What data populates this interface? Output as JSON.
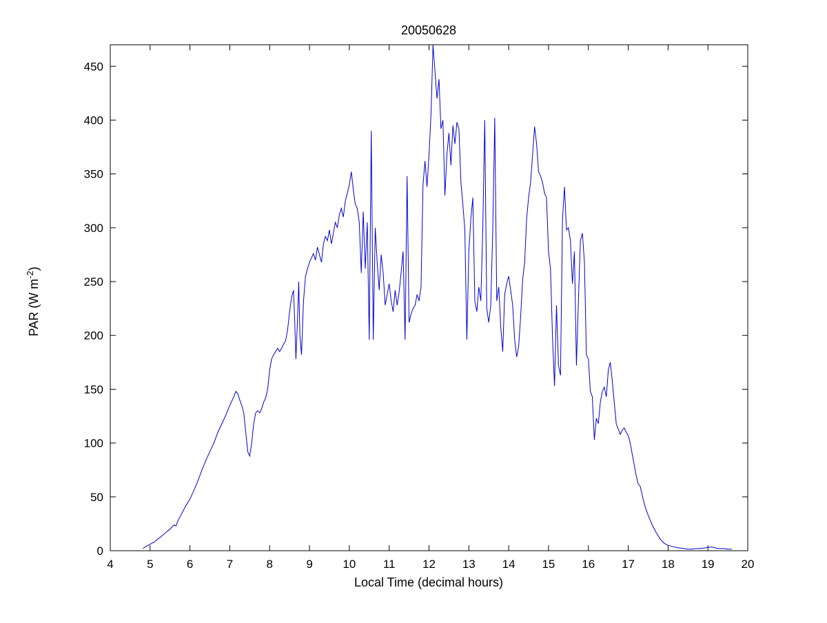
{
  "chart_data": {
    "type": "line",
    "title": "20050628",
    "xlabel": "Local Time (decimal hours)",
    "ylabel": "PAR (W m-2)",
    "ylabel_prefix": "PAR (W m",
    "ylabel_superscript": "-2",
    "ylabel_suffix": ")",
    "xlim": [
      4,
      20
    ],
    "ylim": [
      0,
      470
    ],
    "xticks": [
      4,
      5,
      6,
      7,
      8,
      9,
      10,
      11,
      12,
      13,
      14,
      15,
      16,
      17,
      18,
      19,
      20
    ],
    "yticks": [
      0,
      50,
      100,
      150,
      200,
      250,
      300,
      350,
      400,
      450
    ],
    "line_color": "#0000CC",
    "grid": false,
    "legend": null,
    "series": [
      {
        "name": "PAR",
        "points": [
          [
            4.82,
            2
          ],
          [
            4.9,
            4
          ],
          [
            5.0,
            6
          ],
          [
            5.1,
            8
          ],
          [
            5.2,
            11
          ],
          [
            5.3,
            14
          ],
          [
            5.4,
            17
          ],
          [
            5.5,
            20
          ],
          [
            5.6,
            24
          ],
          [
            5.65,
            23
          ],
          [
            5.7,
            28
          ],
          [
            5.8,
            35
          ],
          [
            5.9,
            42
          ],
          [
            6.0,
            48
          ],
          [
            6.1,
            56
          ],
          [
            6.2,
            65
          ],
          [
            6.3,
            75
          ],
          [
            6.4,
            84
          ],
          [
            6.5,
            92
          ],
          [
            6.6,
            100
          ],
          [
            6.7,
            110
          ],
          [
            6.8,
            118
          ],
          [
            6.9,
            126
          ],
          [
            7.0,
            135
          ],
          [
            7.1,
            143
          ],
          [
            7.15,
            148
          ],
          [
            7.2,
            146
          ],
          [
            7.25,
            140
          ],
          [
            7.3,
            135
          ],
          [
            7.35,
            128
          ],
          [
            7.4,
            110
          ],
          [
            7.45,
            92
          ],
          [
            7.5,
            88
          ],
          [
            7.55,
            100
          ],
          [
            7.6,
            118
          ],
          [
            7.65,
            128
          ],
          [
            7.7,
            130
          ],
          [
            7.75,
            128
          ],
          [
            7.8,
            132
          ],
          [
            7.85,
            138
          ],
          [
            7.9,
            142
          ],
          [
            7.95,
            150
          ],
          [
            8.0,
            168
          ],
          [
            8.05,
            178
          ],
          [
            8.1,
            182
          ],
          [
            8.15,
            185
          ],
          [
            8.2,
            188
          ],
          [
            8.25,
            185
          ],
          [
            8.3,
            188
          ],
          [
            8.35,
            192
          ],
          [
            8.4,
            195
          ],
          [
            8.45,
            205
          ],
          [
            8.5,
            222
          ],
          [
            8.55,
            235
          ],
          [
            8.6,
            242
          ],
          [
            8.63,
            212
          ],
          [
            8.66,
            178
          ],
          [
            8.7,
            215
          ],
          [
            8.73,
            250
          ],
          [
            8.76,
            200
          ],
          [
            8.8,
            182
          ],
          [
            8.85,
            232
          ],
          [
            8.9,
            255
          ],
          [
            8.95,
            262
          ],
          [
            9.0,
            268
          ],
          [
            9.05,
            272
          ],
          [
            9.1,
            276
          ],
          [
            9.15,
            270
          ],
          [
            9.2,
            282
          ],
          [
            9.25,
            275
          ],
          [
            9.3,
            268
          ],
          [
            9.35,
            285
          ],
          [
            9.4,
            292
          ],
          [
            9.45,
            288
          ],
          [
            9.5,
            298
          ],
          [
            9.55,
            285
          ],
          [
            9.6,
            295
          ],
          [
            9.65,
            305
          ],
          [
            9.7,
            300
          ],
          [
            9.75,
            312
          ],
          [
            9.8,
            318
          ],
          [
            9.85,
            310
          ],
          [
            9.9,
            325
          ],
          [
            9.95,
            332
          ],
          [
            10.0,
            340
          ],
          [
            10.05,
            352
          ],
          [
            10.1,
            335
          ],
          [
            10.15,
            322
          ],
          [
            10.2,
            318
          ],
          [
            10.25,
            305
          ],
          [
            10.3,
            258
          ],
          [
            10.35,
            315
          ],
          [
            10.4,
            262
          ],
          [
            10.45,
            305
          ],
          [
            10.5,
            196
          ],
          [
            10.55,
            390
          ],
          [
            10.6,
            196
          ],
          [
            10.65,
            300
          ],
          [
            10.7,
            268
          ],
          [
            10.75,
            242
          ],
          [
            10.8,
            275
          ],
          [
            10.85,
            258
          ],
          [
            10.9,
            228
          ],
          [
            10.95,
            238
          ],
          [
            11.0,
            248
          ],
          [
            11.05,
            232
          ],
          [
            11.1,
            222
          ],
          [
            11.15,
            242
          ],
          [
            11.2,
            228
          ],
          [
            11.25,
            240
          ],
          [
            11.3,
            258
          ],
          [
            11.35,
            278
          ],
          [
            11.4,
            196
          ],
          [
            11.45,
            348
          ],
          [
            11.5,
            212
          ],
          [
            11.55,
            220
          ],
          [
            11.6,
            225
          ],
          [
            11.65,
            228
          ],
          [
            11.7,
            238
          ],
          [
            11.75,
            232
          ],
          [
            11.8,
            245
          ],
          [
            11.85,
            340
          ],
          [
            11.9,
            362
          ],
          [
            11.95,
            338
          ],
          [
            12.0,
            368
          ],
          [
            12.05,
            405
          ],
          [
            12.1,
            470
          ],
          [
            12.15,
            445
          ],
          [
            12.2,
            420
          ],
          [
            12.25,
            438
          ],
          [
            12.3,
            392
          ],
          [
            12.35,
            400
          ],
          [
            12.4,
            330
          ],
          [
            12.45,
            368
          ],
          [
            12.5,
            388
          ],
          [
            12.55,
            358
          ],
          [
            12.6,
            395
          ],
          [
            12.65,
            378
          ],
          [
            12.7,
            398
          ],
          [
            12.75,
            392
          ],
          [
            12.8,
            342
          ],
          [
            12.85,
            322
          ],
          [
            12.9,
            298
          ],
          [
            12.95,
            196
          ],
          [
            13.0,
            278
          ],
          [
            13.05,
            308
          ],
          [
            13.1,
            328
          ],
          [
            13.15,
            232
          ],
          [
            13.2,
            222
          ],
          [
            13.25,
            245
          ],
          [
            13.3,
            232
          ],
          [
            13.35,
            298
          ],
          [
            13.4,
            400
          ],
          [
            13.45,
            225
          ],
          [
            13.5,
            212
          ],
          [
            13.55,
            228
          ],
          [
            13.6,
            298
          ],
          [
            13.65,
            402
          ],
          [
            13.7,
            232
          ],
          [
            13.75,
            245
          ],
          [
            13.8,
            208
          ],
          [
            13.85,
            185
          ],
          [
            13.9,
            238
          ],
          [
            13.95,
            248
          ],
          [
            14.0,
            255
          ],
          [
            14.05,
            242
          ],
          [
            14.1,
            228
          ],
          [
            14.15,
            196
          ],
          [
            14.2,
            180
          ],
          [
            14.25,
            190
          ],
          [
            14.3,
            218
          ],
          [
            14.35,
            252
          ],
          [
            14.4,
            268
          ],
          [
            14.45,
            308
          ],
          [
            14.5,
            328
          ],
          [
            14.55,
            342
          ],
          [
            14.6,
            368
          ],
          [
            14.65,
            394
          ],
          [
            14.7,
            378
          ],
          [
            14.75,
            352
          ],
          [
            14.8,
            348
          ],
          [
            14.85,
            342
          ],
          [
            14.9,
            332
          ],
          [
            14.95,
            328
          ],
          [
            15.0,
            278
          ],
          [
            15.05,
            262
          ],
          [
            15.1,
            198
          ],
          [
            15.15,
            153
          ],
          [
            15.2,
            228
          ],
          [
            15.25,
            172
          ],
          [
            15.3,
            163
          ],
          [
            15.35,
            308
          ],
          [
            15.4,
            338
          ],
          [
            15.45,
            298
          ],
          [
            15.5,
            300
          ],
          [
            15.55,
            288
          ],
          [
            15.6,
            248
          ],
          [
            15.65,
            278
          ],
          [
            15.7,
            172
          ],
          [
            15.75,
            232
          ],
          [
            15.8,
            288
          ],
          [
            15.85,
            295
          ],
          [
            15.9,
            268
          ],
          [
            15.95,
            182
          ],
          [
            16.0,
            178
          ],
          [
            16.05,
            148
          ],
          [
            16.1,
            143
          ],
          [
            16.15,
            103
          ],
          [
            16.2,
            123
          ],
          [
            16.25,
            118
          ],
          [
            16.3,
            138
          ],
          [
            16.35,
            148
          ],
          [
            16.4,
            152
          ],
          [
            16.45,
            143
          ],
          [
            16.5,
            168
          ],
          [
            16.55,
            175
          ],
          [
            16.6,
            158
          ],
          [
            16.65,
            138
          ],
          [
            16.7,
            118
          ],
          [
            16.75,
            113
          ],
          [
            16.8,
            108
          ],
          [
            16.85,
            112
          ],
          [
            16.9,
            114
          ],
          [
            16.95,
            110
          ],
          [
            17.0,
            107
          ],
          [
            17.05,
            100
          ],
          [
            17.1,
            90
          ],
          [
            17.15,
            80
          ],
          [
            17.2,
            70
          ],
          [
            17.25,
            62
          ],
          [
            17.3,
            60
          ],
          [
            17.35,
            52
          ],
          [
            17.4,
            44
          ],
          [
            17.45,
            38
          ],
          [
            17.5,
            33
          ],
          [
            17.6,
            24
          ],
          [
            17.7,
            17
          ],
          [
            17.8,
            11
          ],
          [
            17.9,
            7
          ],
          [
            18.0,
            5
          ],
          [
            18.1,
            4
          ],
          [
            18.2,
            3
          ],
          [
            18.3,
            2.5
          ],
          [
            18.4,
            2
          ],
          [
            18.5,
            1.5
          ],
          [
            18.6,
            1.5
          ],
          [
            18.7,
            2
          ],
          [
            18.8,
            2
          ],
          [
            18.9,
            2.5
          ],
          [
            19.0,
            3
          ],
          [
            19.1,
            3.5
          ],
          [
            19.2,
            2.5
          ],
          [
            19.3,
            2
          ],
          [
            19.4,
            2
          ],
          [
            19.5,
            1.5
          ],
          [
            19.6,
            1.5
          ]
        ]
      }
    ]
  }
}
